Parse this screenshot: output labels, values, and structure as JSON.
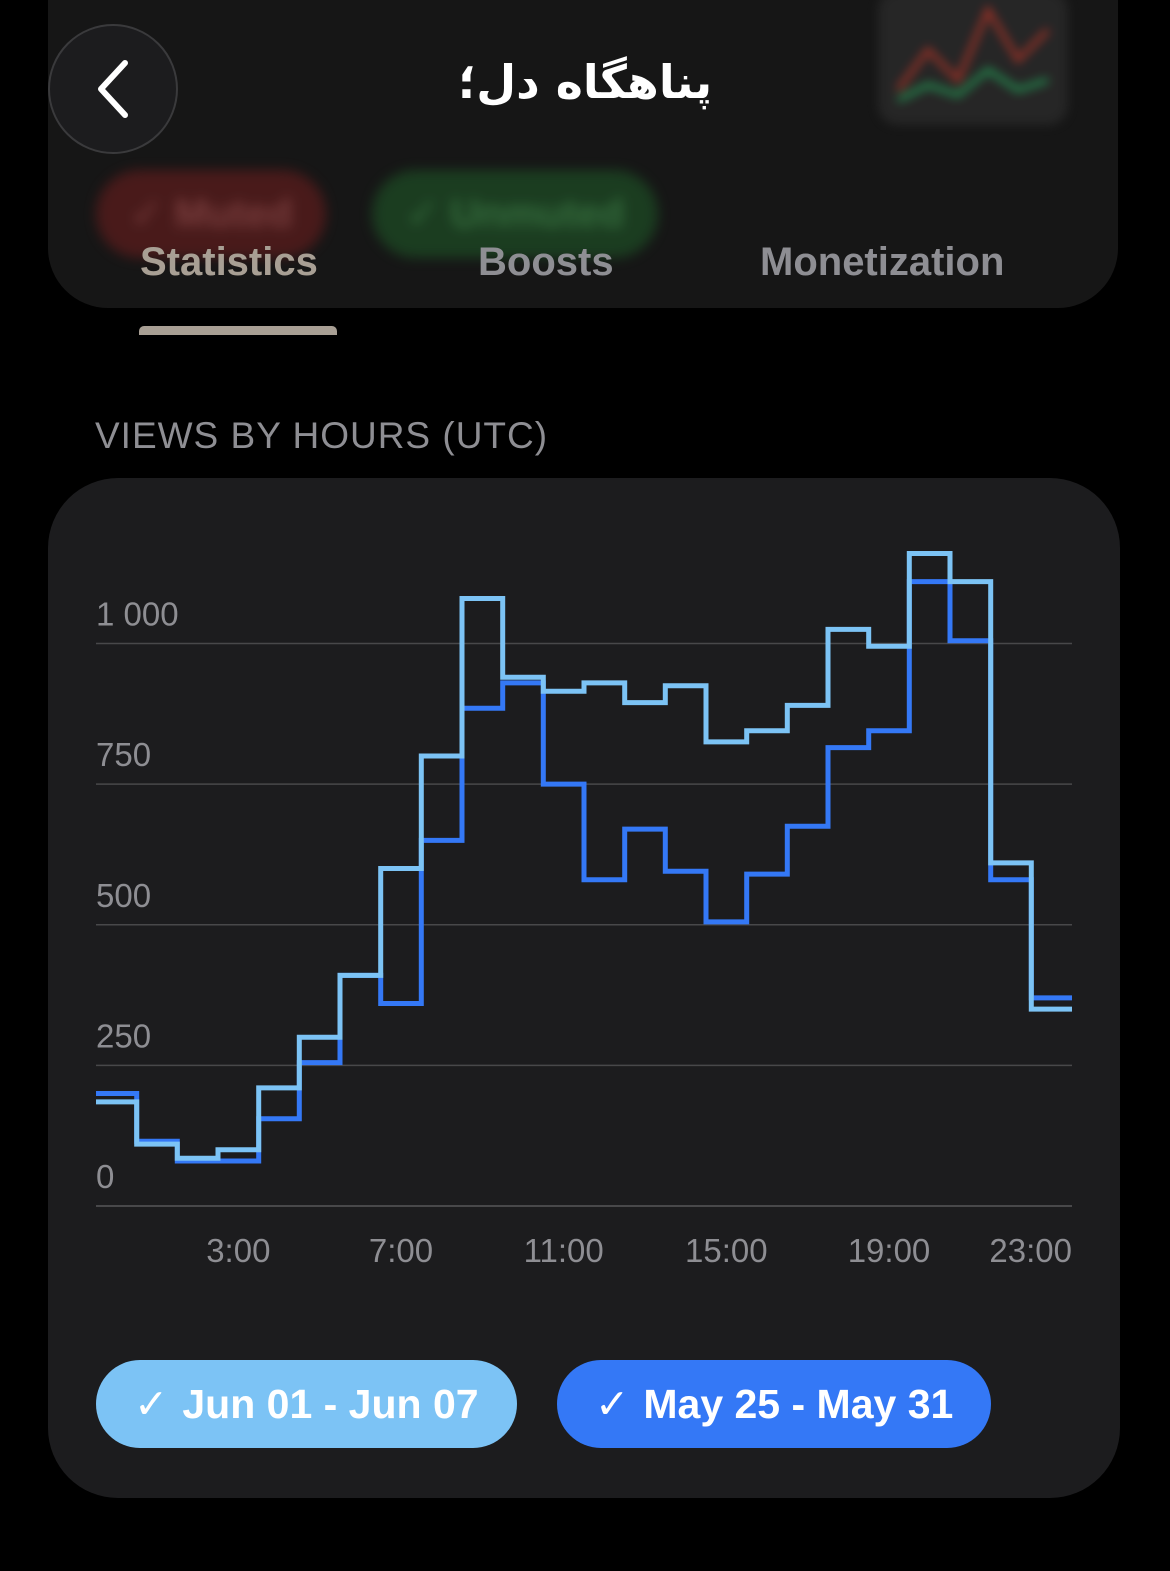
{
  "header": {
    "title": "پناهگاه دل؛",
    "back_icon": "chevron-left-icon",
    "background_chips": [
      "✓ Muted",
      "✓ Unmuted"
    ]
  },
  "tabs": [
    {
      "label": "Statistics",
      "active": true
    },
    {
      "label": "Boosts",
      "active": false
    },
    {
      "label": "Monetization",
      "active": false
    }
  ],
  "section": {
    "title": "VIEWS BY HOURS (UTC)"
  },
  "legend": [
    {
      "label": "Jun 01 - Jun 07",
      "color": "#7cc3f5"
    },
    {
      "label": "May 25 - May 31",
      "color": "#3478f6"
    }
  ],
  "chart_data": {
    "type": "line",
    "step": true,
    "title": "VIEWS BY HOURS (UTC)",
    "x": [
      "0:00",
      "1:00",
      "2:00",
      "3:00",
      "4:00",
      "5:00",
      "6:00",
      "7:00",
      "8:00",
      "9:00",
      "10:00",
      "11:00",
      "12:00",
      "13:00",
      "14:00",
      "15:00",
      "16:00",
      "17:00",
      "18:00",
      "19:00",
      "20:00",
      "21:00",
      "22:00",
      "23:00"
    ],
    "x_tick_labels": [
      "3:00",
      "7:00",
      "11:00",
      "15:00",
      "19:00",
      "23:00"
    ],
    "y_tick_labels": [
      "0",
      "250",
      "500",
      "750",
      "1 000"
    ],
    "ylim": [
      0,
      1180
    ],
    "grid": true,
    "series": [
      {
        "name": "Jun 01 - Jun 07",
        "color": "#7cc3f5",
        "values": [
          185,
          110,
          85,
          100,
          210,
          300,
          410,
          600,
          800,
          1080,
          940,
          915,
          930,
          895,
          925,
          825,
          845,
          890,
          1025,
          995,
          1160,
          1110,
          610,
          350
        ]
      },
      {
        "name": "May 25 - May 31",
        "color": "#3478f6",
        "values": [
          200,
          115,
          80,
          80,
          155,
          255,
          410,
          360,
          650,
          885,
          930,
          750,
          580,
          670,
          595,
          505,
          590,
          675,
          815,
          845,
          1110,
          1005,
          580,
          370
        ]
      }
    ]
  }
}
